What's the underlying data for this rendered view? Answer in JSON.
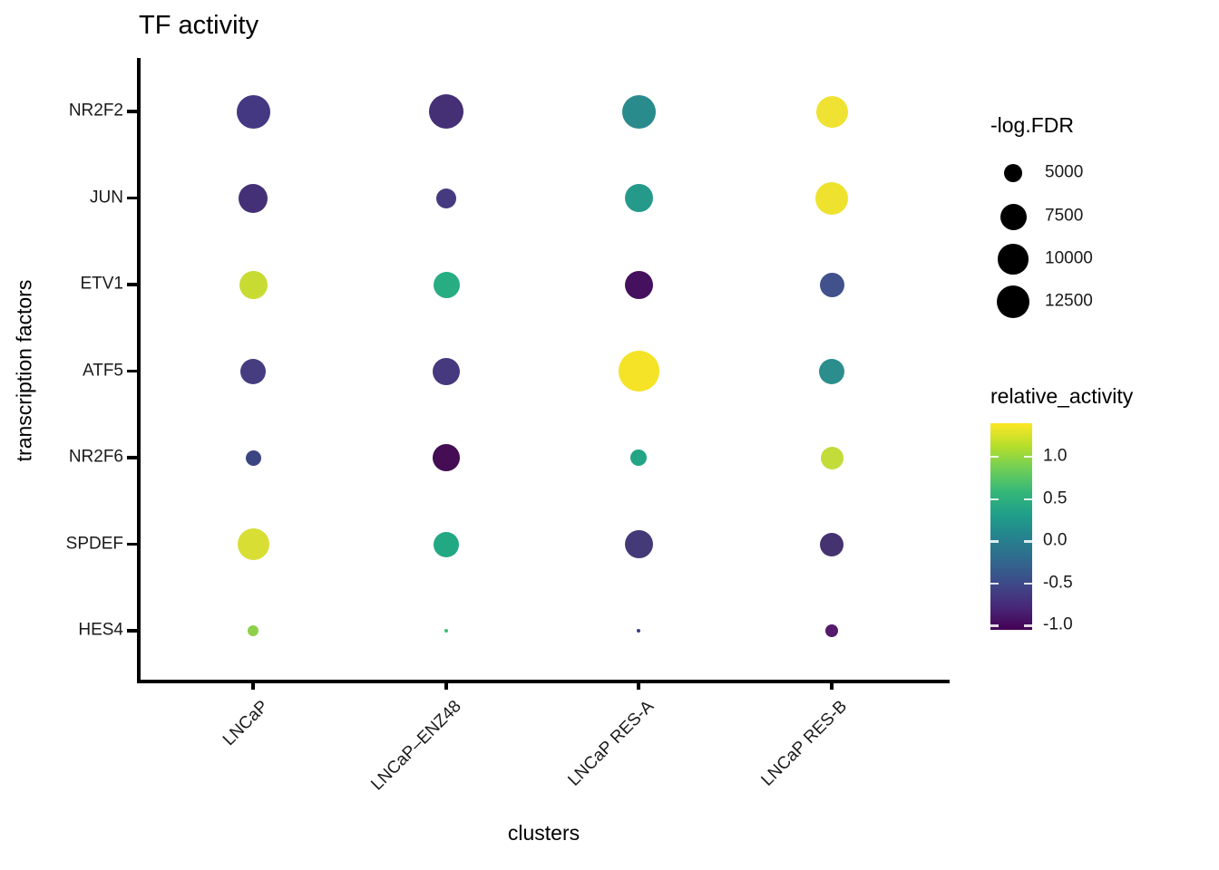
{
  "chart_data": {
    "type": "scatter",
    "subtype": "dot-plot",
    "title": "TF activity",
    "xlabel": "clusters",
    "ylabel": "transcription factors",
    "x_categories": [
      "LNCaP",
      "LNCaP–ENZ48",
      "LNCaP RES-A",
      "LNCaP RES-B"
    ],
    "y_categories": [
      "NR2F2",
      "JUN",
      "ETV1",
      "ATF5",
      "NR2F6",
      "SPDEF",
      "HES4"
    ],
    "grid": false,
    "legend_position": "right",
    "size_legend": {
      "title": "-log.FDR",
      "entries": [
        {
          "label": "5000",
          "value": 5000,
          "radius_px": 10.3
        },
        {
          "label": "7500",
          "value": 7500,
          "radius_px": 14.5
        },
        {
          "label": "10000",
          "value": 10000,
          "radius_px": 16.7
        },
        {
          "label": "12500",
          "value": 12500,
          "radius_px": 18.3
        }
      ]
    },
    "color_legend": {
      "title": "relative_activity",
      "colormap": "viridis",
      "bar_value_top": 1.4,
      "bar_value_bottom": -1.05,
      "ticks": [
        {
          "label": "1.0",
          "value": 1.0
        },
        {
          "label": "0.5",
          "value": 0.5
        },
        {
          "label": "0.0",
          "value": 0.0
        },
        {
          "label": "-0.5",
          "value": -0.5
        },
        {
          "label": "-1.0",
          "value": -1.0
        }
      ]
    },
    "points": [
      {
        "tf": "NR2F2",
        "cluster": "LNCaP",
        "relative_activity": -0.66,
        "neg_log_fdr": 11000,
        "radius_px": 18.5,
        "color": "#453882"
      },
      {
        "tf": "NR2F2",
        "cluster": "LNCaP–ENZ48",
        "relative_activity": -0.76,
        "neg_log_fdr": 11600,
        "radius_px": 19,
        "color": "#452F75"
      },
      {
        "tf": "NR2F2",
        "cluster": "LNCaP RES-A",
        "relative_activity": 0.0,
        "neg_log_fdr": 11000,
        "radius_px": 18.5,
        "color": "#2A8B8D"
      },
      {
        "tf": "NR2F2",
        "cluster": "LNCaP RES-B",
        "relative_activity": 1.3,
        "neg_log_fdr": 10200,
        "radius_px": 17.5,
        "color": "#F0E233"
      },
      {
        "tf": "JUN",
        "cluster": "LNCaP",
        "relative_activity": -0.75,
        "neg_log_fdr": 9300,
        "radius_px": 16,
        "color": "#443076"
      },
      {
        "tf": "JUN",
        "cluster": "LNCaP–ENZ48",
        "relative_activity": -0.65,
        "neg_log_fdr": 5700,
        "radius_px": 11,
        "color": "#453A80"
      },
      {
        "tf": "JUN",
        "cluster": "LNCaP RES-A",
        "relative_activity": 0.15,
        "neg_log_fdr": 8900,
        "radius_px": 15.5,
        "color": "#259A8B"
      },
      {
        "tf": "JUN",
        "cluster": "LNCaP RES-B",
        "relative_activity": 1.3,
        "neg_log_fdr": 10600,
        "radius_px": 18,
        "color": "#EEE22F"
      },
      {
        "tf": "ETV1",
        "cluster": "LNCaP",
        "relative_activity": 1.15,
        "neg_log_fdr": 8900,
        "radius_px": 15.5,
        "color": "#C8DB32"
      },
      {
        "tf": "ETV1",
        "cluster": "LNCaP–ENZ48",
        "relative_activity": 0.4,
        "neg_log_fdr": 8100,
        "radius_px": 14.5,
        "color": "#27AD81"
      },
      {
        "tf": "ETV1",
        "cluster": "LNCaP RES-A",
        "relative_activity": -0.95,
        "neg_log_fdr": 8900,
        "radius_px": 15.5,
        "color": "#45115E"
      },
      {
        "tf": "ETV1",
        "cluster": "LNCaP RES-B",
        "relative_activity": -0.45,
        "neg_log_fdr": 7300,
        "radius_px": 13.5,
        "color": "#41518C"
      },
      {
        "tf": "ATF5",
        "cluster": "LNCaP",
        "relative_activity": -0.6,
        "neg_log_fdr": 7700,
        "radius_px": 14,
        "color": "#453D80"
      },
      {
        "tf": "ATF5",
        "cluster": "LNCaP–ENZ48",
        "relative_activity": -0.68,
        "neg_log_fdr": 8500,
        "radius_px": 15,
        "color": "#46397E"
      },
      {
        "tf": "ATF5",
        "cluster": "LNCaP RES-A",
        "relative_activity": 1.4,
        "neg_log_fdr": 17000,
        "radius_px": 22.5,
        "color": "#F5E327"
      },
      {
        "tf": "ATF5",
        "cluster": "LNCaP RES-B",
        "relative_activity": 0.05,
        "neg_log_fdr": 7700,
        "radius_px": 14,
        "color": "#2B8E8C"
      },
      {
        "tf": "NR2F6",
        "cluster": "LNCaP",
        "relative_activity": -0.55,
        "neg_log_fdr": 4000,
        "radius_px": 8.5,
        "color": "#3B4581"
      },
      {
        "tf": "NR2F6",
        "cluster": "LNCaP–ENZ48",
        "relative_activity": -1.0,
        "neg_log_fdr": 8500,
        "radius_px": 15,
        "color": "#440D54"
      },
      {
        "tf": "NR2F6",
        "cluster": "LNCaP RES-A",
        "relative_activity": 0.35,
        "neg_log_fdr": 4300,
        "radius_px": 9,
        "color": "#21A585"
      },
      {
        "tf": "NR2F6",
        "cluster": "LNCaP RES-B",
        "relative_activity": 1.1,
        "neg_log_fdr": 6700,
        "radius_px": 12.5,
        "color": "#C3DC39"
      },
      {
        "tf": "SPDEF",
        "cluster": "LNCaP",
        "relative_activity": 1.2,
        "neg_log_fdr": 10200,
        "radius_px": 17.5,
        "color": "#D9DE35"
      },
      {
        "tf": "SPDEF",
        "cluster": "LNCaP–ENZ48",
        "relative_activity": 0.37,
        "neg_log_fdr": 7700,
        "radius_px": 14,
        "color": "#23A884"
      },
      {
        "tf": "SPDEF",
        "cluster": "LNCaP RES-A",
        "relative_activity": -0.68,
        "neg_log_fdr": 8900,
        "radius_px": 15.5,
        "color": "#453A78"
      },
      {
        "tf": "SPDEF",
        "cluster": "LNCaP RES-B",
        "relative_activity": -0.73,
        "neg_log_fdr": 7000,
        "radius_px": 13,
        "color": "#443271"
      },
      {
        "tf": "HES4",
        "cluster": "LNCaP",
        "relative_activity": 0.85,
        "neg_log_fdr": 2700,
        "radius_px": 6,
        "color": "#8ED04A"
      },
      {
        "tf": "HES4",
        "cluster": "LNCaP–ENZ48",
        "relative_activity": 0.6,
        "neg_log_fdr": 1100,
        "radius_px": 2.3,
        "color": "#42BB72"
      },
      {
        "tf": "HES4",
        "cluster": "LNCaP RES-A",
        "relative_activity": -0.6,
        "neg_log_fdr": 1000,
        "radius_px": 2,
        "color": "#3B3D7E"
      },
      {
        "tf": "HES4",
        "cluster": "LNCaP RES-B",
        "relative_activity": -0.9,
        "neg_log_fdr": 3200,
        "radius_px": 7,
        "color": "#551A6B"
      }
    ]
  }
}
